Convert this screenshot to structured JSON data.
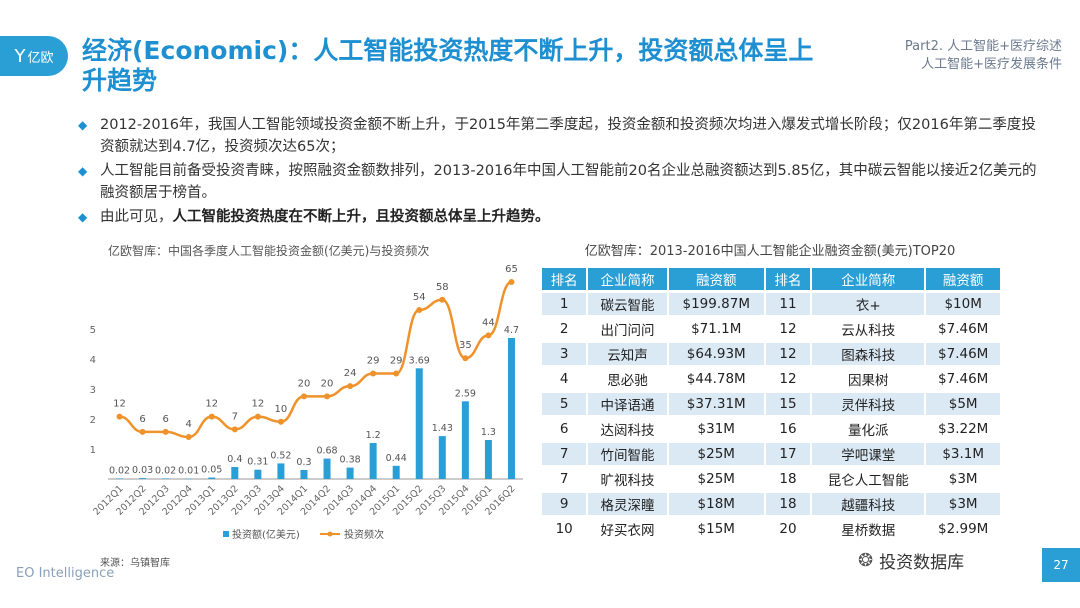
{
  "logo": {
    "icon": "Y",
    "text": "亿欧"
  },
  "title": "经济(Economic)：人工智能投资热度不断上升，投资额总体呈上升趋势",
  "part": {
    "line1": "Part2. 人工智能+医疗综述",
    "line2": "人工智能+医疗发展条件"
  },
  "bullets": [
    {
      "text": "2012-2016年，我国人工智能领域投资金额不断上升，于2015年第二季度起，投资金额和投资频次均进入爆发式增长阶段；仅2016年第二季度投资额就达到4.7亿，投资频次达65次；"
    },
    {
      "text": "人工智能目前备受投资青睐，按照融资金额数排列，2013-2016年中国人工智能前20名企业总融资额达到5.85亿，其中碳云智能以接近2亿美元的融资额居于榜首。"
    },
    {
      "prefix": "由此可见，",
      "bold": "人工智能投资热度在不断上升，且投资额总体呈上升趋势。"
    }
  ],
  "chart_data": {
    "type": "bar",
    "title": "亿欧智库：中国各季度人工智能投资金额(亿美元)与投资频次",
    "categories": [
      "2012Q1",
      "2012Q2",
      "2012Q3",
      "2012Q4",
      "2013Q1",
      "2013Q2",
      "2013Q3",
      "2013Q4",
      "2014Q1",
      "2014Q2",
      "2014Q3",
      "2014Q4",
      "2015Q1",
      "2015Q2",
      "2015Q3",
      "2015Q4",
      "2016Q1",
      "2016Q2"
    ],
    "y_ticks": [
      "0",
      "1",
      "2",
      "3",
      "4",
      "5"
    ],
    "ylim": [
      0,
      5
    ],
    "series": [
      {
        "name": "投资额(亿美元)",
        "type": "bar",
        "color": "#2a9fd6",
        "values": [
          0.02,
          0.03,
          0.02,
          0.01,
          0.05,
          0.4,
          0.31,
          0.52,
          0.3,
          0.68,
          0.38,
          1.2,
          0.44,
          3.69,
          1.43,
          2.59,
          1.3,
          4.7
        ],
        "labels": [
          "0.02",
          "0.03",
          "0.02",
          "0.01",
          "0.05",
          "0.4",
          "0.31",
          "0.52",
          "0.3",
          "0.68",
          "0.38",
          "1.2",
          "0.44",
          "3.69",
          "1.43",
          "2.59",
          "1.3",
          "4.7"
        ]
      },
      {
        "name": "投资频次",
        "type": "line",
        "color": "#f0922b",
        "values": [
          12,
          6,
          6,
          4,
          12,
          7,
          12,
          10,
          20,
          20,
          24,
          29,
          29,
          54,
          58,
          35,
          44,
          65
        ],
        "labels": [
          "12",
          "6",
          "6",
          "4",
          "12",
          "7",
          "12",
          "10",
          "20",
          "20",
          "24",
          "29",
          "29",
          "54",
          "58",
          "35",
          "44",
          "65"
        ]
      }
    ]
  },
  "table": {
    "title": "亿欧智库：2013-2016中国人工智能企业融资金额(美元)TOP20",
    "headers": [
      "排名",
      "企业简称",
      "融资额",
      "排名",
      "企业简称",
      "融资额"
    ],
    "rows": [
      [
        "1",
        "碳云智能",
        "$199.87M",
        "11",
        "衣+",
        "$10M"
      ],
      [
        "2",
        "出门问问",
        "$71.1M",
        "12",
        "云从科技",
        "$7.46M"
      ],
      [
        "3",
        "云知声",
        "$64.93M",
        "12",
        "图森科技",
        "$7.46M"
      ],
      [
        "4",
        "思必驰",
        "$44.78M",
        "12",
        "因果树",
        "$7.46M"
      ],
      [
        "5",
        "中译语通",
        "$37.31M",
        "15",
        "灵伴科技",
        "$5M"
      ],
      [
        "6",
        "达闼科技",
        "$31M",
        "16",
        "量化派",
        "$3.22M"
      ],
      [
        "7",
        "竹间智能",
        "$25M",
        "17",
        "学吧课堂",
        "$3.1M"
      ],
      [
        "7",
        "旷视科技",
        "$25M",
        "18",
        "昆仑人工智能",
        "$3M"
      ],
      [
        "9",
        "格灵深瞳",
        "$18M",
        "18",
        "越疆科技",
        "$3M"
      ],
      [
        "10",
        "好买衣网",
        "$15M",
        "20",
        "星桥数据",
        "$2.99M"
      ]
    ]
  },
  "source": "来源：乌镇智库",
  "footer_brand": "EO Intelligence",
  "watermark": {
    "icon": "wechat-icon",
    "text": "投资数据库"
  },
  "page_number": "27"
}
